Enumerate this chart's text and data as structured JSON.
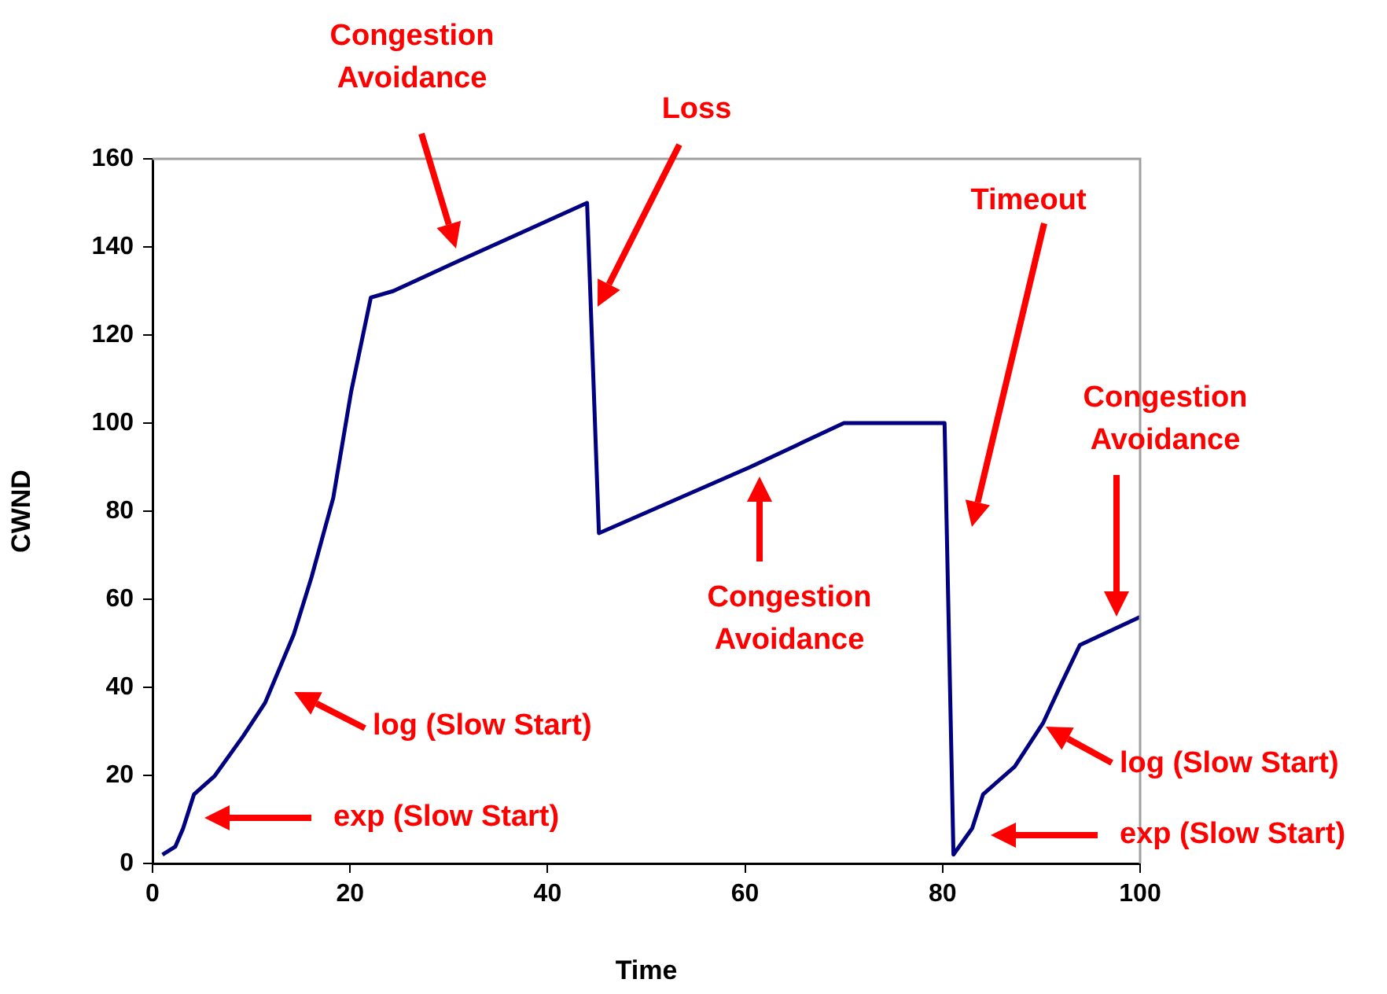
{
  "chart_data": {
    "type": "line",
    "xlabel": "Time",
    "ylabel": "CWND",
    "x": [
      1,
      2.3,
      3.1,
      4.2,
      6.3,
      9.2,
      11.4,
      14.3,
      16.1,
      18.3,
      20.1,
      22.1,
      24.4,
      30.7,
      37.1,
      44,
      45.2,
      60.5,
      70,
      80.2,
      81.1,
      83,
      84.1,
      87.3,
      90.2,
      92,
      93.9,
      100
    ],
    "values": [
      2,
      3.8,
      8,
      15.7,
      19.9,
      29,
      36.5,
      52,
      65,
      83,
      107,
      128.5,
      130,
      136.5,
      143,
      150,
      75,
      90,
      100,
      100,
      2,
      8,
      15.7,
      22,
      32,
      40.7,
      49.6,
      56
    ],
    "color": "#000080",
    "xlim": [
      0,
      100
    ],
    "xticks": [
      0,
      20,
      40,
      60,
      80,
      100
    ],
    "ylim": [
      0,
      160
    ],
    "yticks": [
      0,
      20,
      40,
      60,
      80,
      100,
      120,
      140,
      160
    ],
    "grid": false,
    "legend": false,
    "marker": "none",
    "line_style": "solid",
    "annotations": [
      "Congestion Avoidance",
      "Loss",
      "Timeout",
      "Congestion Avoidance",
      "Congestion Avoidance",
      "log (Slow Start)",
      "exp (Slow Start)",
      "log (Slow Start)",
      "exp (Slow Start)"
    ]
  }
}
